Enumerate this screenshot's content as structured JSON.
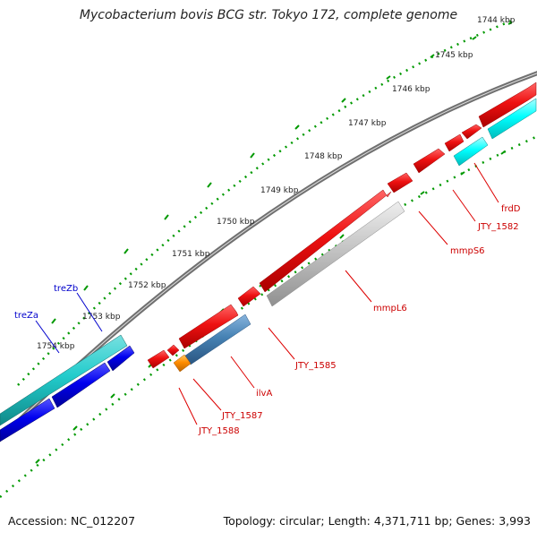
{
  "title": "Mycobacterium bovis BCG str. Tokyo 172, complete genome",
  "accession": "Accession: NC_012207",
  "summary": "Topology: circular; Length: 4,371,711 bp; Genes: 3,993",
  "ruler_ticks": [
    "1744 kbp",
    "1745 kbp",
    "1746 kbp",
    "1747 kbp",
    "1748 kbp",
    "1749 kbp",
    "1750 kbp",
    "1751 kbp",
    "1752 kbp",
    "1753 kbp",
    "1754 kbp"
  ],
  "gene_labels": {
    "treZb": "treZb",
    "treZa": "treZa",
    "frdD": "frdD",
    "JTY_1582": "JTY_1582",
    "mmpS6": "mmpS6",
    "mmpL6": "mmpL6",
    "JTY_1585": "JTY_1585",
    "ilvA": "ilvA",
    "JTY_1587": "JTY_1587",
    "JTY_1588": "JTY_1588"
  },
  "colors": {
    "backbone": "#808080",
    "forward_gene": "#ee1111",
    "cyan_gene": "#00ffff",
    "teal_gene": "#22cccc",
    "blue_gene": "#0000ee",
    "steel_gene": "#4682b4",
    "gray_gene": "#c0c0c0",
    "orange_gene": "#ff8c00",
    "tick": "#009900",
    "label_red": "#cc0000",
    "label_blue": "#0000cc"
  }
}
